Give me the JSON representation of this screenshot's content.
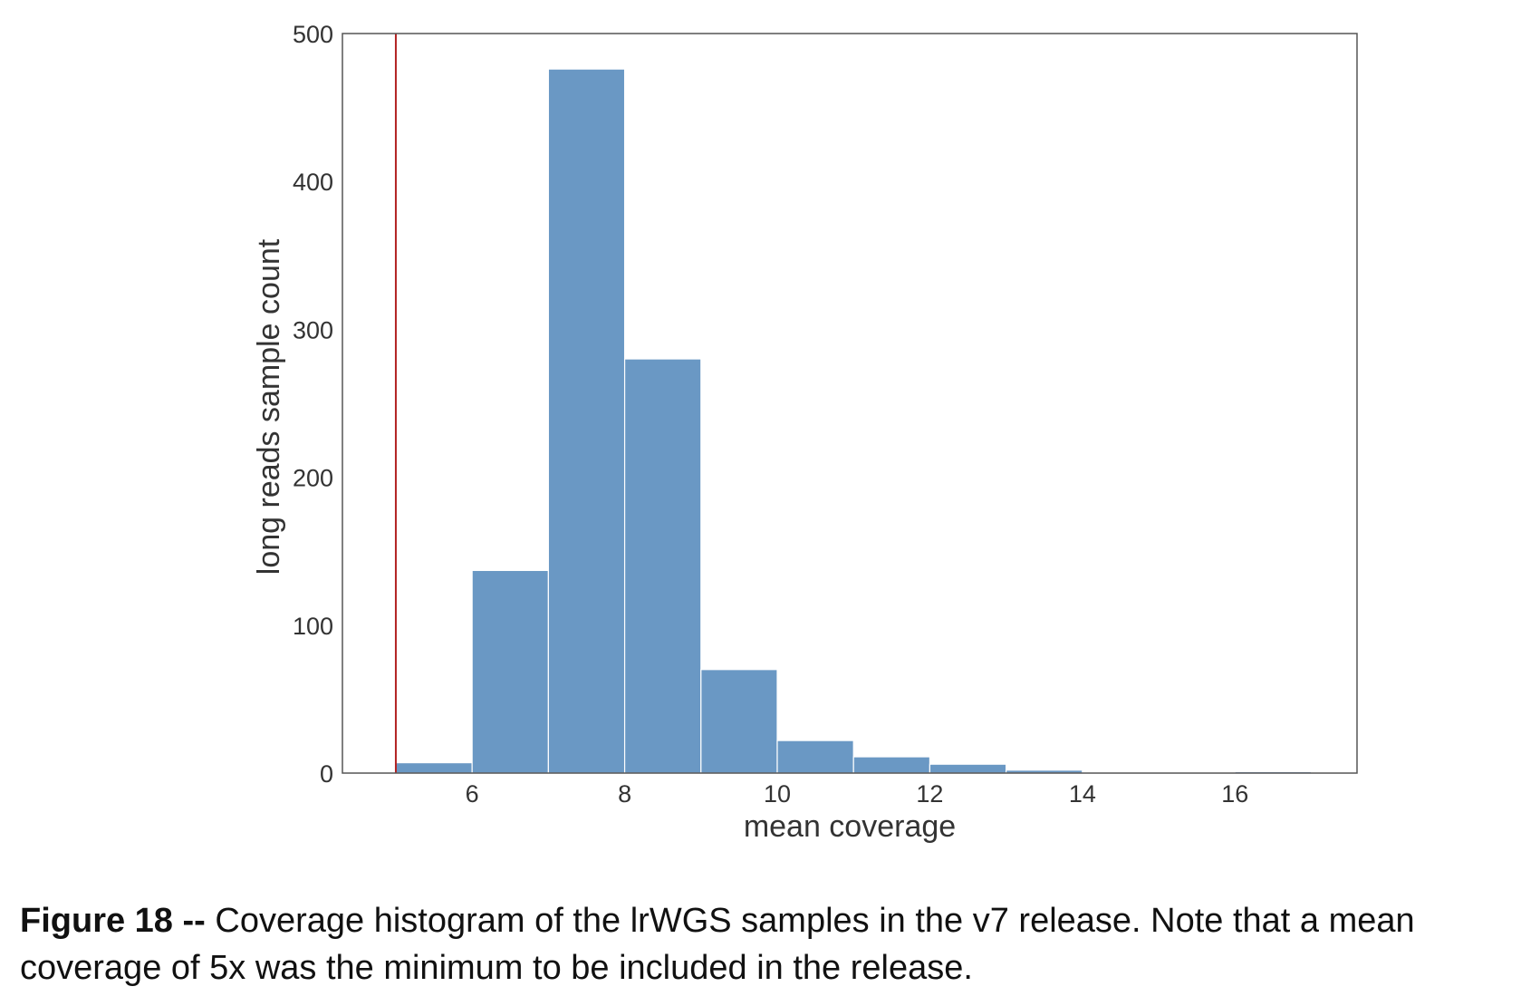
{
  "caption": {
    "label": "Figure 18 --",
    "text": " Coverage histogram of the lrWGS samples in the v7 release.  Note that a mean coverage of 5x was the minimum to be included in the release."
  },
  "chart_data": {
    "type": "bar",
    "xlabel": "mean coverage",
    "ylabel": "long reads sample count",
    "xlim": [
      4.3,
      17.6
    ],
    "ylim": [
      0,
      500
    ],
    "xticks": [
      6,
      8,
      10,
      12,
      14,
      16
    ],
    "yticks": [
      0,
      100,
      200,
      300,
      400,
      500
    ],
    "grid": false,
    "bar_color": "#6a98c4",
    "bins": [
      {
        "x0": 5,
        "x1": 6,
        "count": 7
      },
      {
        "x0": 6,
        "x1": 7,
        "count": 137
      },
      {
        "x0": 7,
        "x1": 8,
        "count": 476
      },
      {
        "x0": 8,
        "x1": 9,
        "count": 280
      },
      {
        "x0": 9,
        "x1": 10,
        "count": 70
      },
      {
        "x0": 10,
        "x1": 11,
        "count": 22
      },
      {
        "x0": 11,
        "x1": 12,
        "count": 11
      },
      {
        "x0": 12,
        "x1": 13,
        "count": 6
      },
      {
        "x0": 13,
        "x1": 14,
        "count": 2
      },
      {
        "x0": 14,
        "x1": 15,
        "count": 0.5
      },
      {
        "x0": 15,
        "x1": 16,
        "count": 0.5
      },
      {
        "x0": 16,
        "x1": 17,
        "count": 1
      }
    ],
    "threshold_line": {
      "x": 5,
      "color": "#b22222"
    }
  }
}
